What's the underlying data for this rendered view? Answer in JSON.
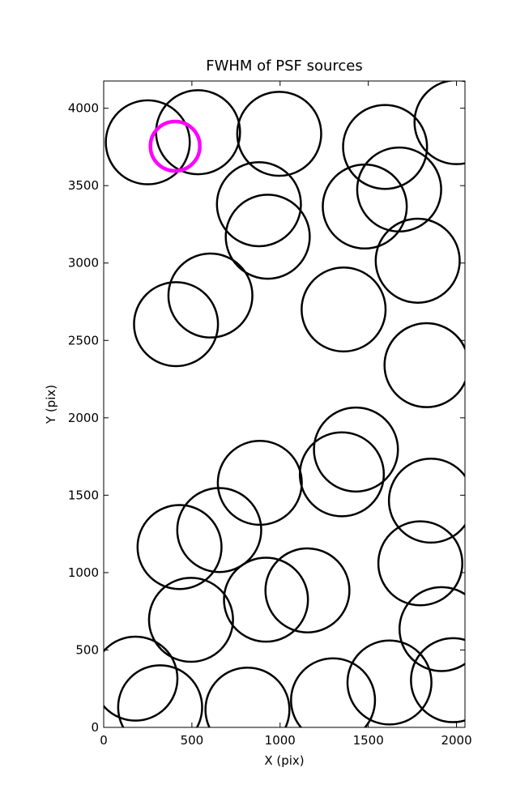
{
  "chart_data": {
    "type": "scatter",
    "title": "FWHM of PSF sources",
    "xlabel": "X (pix)",
    "ylabel": "Y (pix)",
    "xlim": [
      0,
      2048
    ],
    "ylim": [
      0,
      4176
    ],
    "xticks": [
      0,
      500,
      1000,
      1500,
      2000
    ],
    "yticks": [
      0,
      500,
      1000,
      1500,
      2000,
      2500,
      3000,
      3500,
      4000
    ],
    "grid": false,
    "series": [
      {
        "color": "#000000",
        "linewidth": 2.5,
        "x": [
          250,
          535,
          995,
          1595,
          2000,
          880,
          930,
          1480,
          1675,
          1780,
          605,
          410,
          1360,
          1830,
          1430,
          1350,
          885,
          1855,
          655,
          430,
          1795,
          1155,
          920,
          495,
          1915,
          180,
          320,
          815,
          1300,
          1620,
          1980
        ],
        "y": [
          3780,
          3845,
          3835,
          3750,
          3910,
          3380,
          3170,
          3365,
          3475,
          3015,
          2790,
          2605,
          2700,
          2340,
          1795,
          1635,
          1580,
          1465,
          1275,
          1165,
          1060,
          885,
          825,
          695,
          635,
          315,
          130,
          115,
          175,
          290,
          305
        ],
        "sizes": [
          238,
          238,
          238,
          238,
          238,
          238,
          238,
          238,
          238,
          238,
          238,
          238,
          238,
          238,
          238,
          238,
          238,
          238,
          238,
          238,
          238,
          238,
          238,
          238,
          238,
          238,
          238,
          238,
          238,
          238,
          238
        ]
      },
      {
        "color": "#ff00ff",
        "linewidth": 4.5,
        "x": [
          405
        ],
        "y": [
          3755
        ],
        "sizes": [
          140
        ]
      }
    ]
  }
}
